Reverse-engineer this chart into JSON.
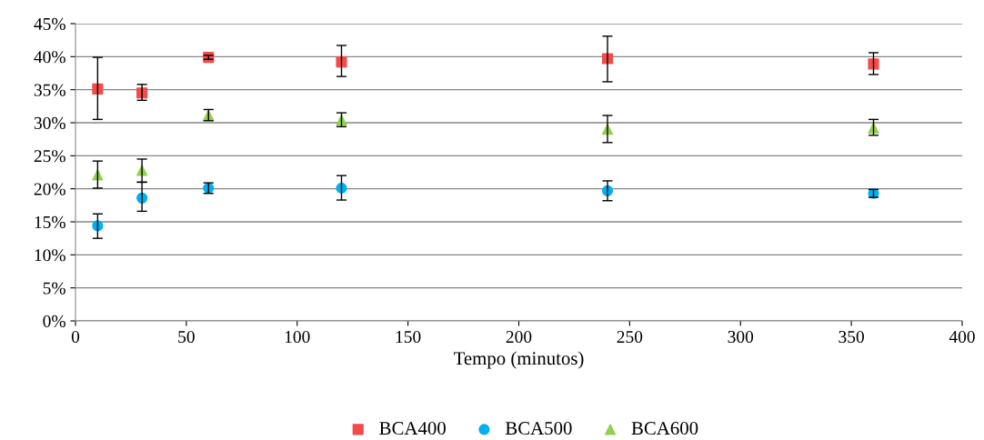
{
  "chart_data": {
    "type": "scatter",
    "xlabel": "Tempo (minutos)",
    "xlim": [
      0,
      400
    ],
    "xticks": [
      0,
      50,
      100,
      150,
      200,
      250,
      300,
      350,
      400
    ],
    "ylim": [
      0,
      45
    ],
    "yticks": [
      {
        "value": 0,
        "label": "0%"
      },
      {
        "value": 5,
        "label": "5%"
      },
      {
        "value": 10,
        "label": "10%"
      },
      {
        "value": 15,
        "label": "15%"
      },
      {
        "value": 20,
        "label": "20%"
      },
      {
        "value": 25,
        "label": "25%"
      },
      {
        "value": 30,
        "label": "30%"
      },
      {
        "value": 35,
        "label": "35%"
      },
      {
        "value": 40,
        "label": "40%"
      },
      {
        "value": 45,
        "label": "45%"
      }
    ],
    "grid": "y",
    "legend": "bottom",
    "x": [
      10,
      30,
      60,
      120,
      240,
      360
    ],
    "series": [
      {
        "name": "BCA400",
        "color": "#f24b4b",
        "marker": "square",
        "values": [
          35.1,
          34.5,
          39.9,
          39.2,
          39.7,
          38.9
        ],
        "errors": [
          [
            30.5,
            39.9
          ],
          [
            33.4,
            35.8
          ],
          [
            39.6,
            40.2
          ],
          [
            37.0,
            41.7
          ],
          [
            36.2,
            43.1
          ],
          [
            37.3,
            40.6
          ]
        ]
      },
      {
        "name": "BCA500",
        "color": "#00b0f0",
        "marker": "circle",
        "values": [
          14.4,
          18.6,
          20.1,
          20.1,
          19.7,
          19.3
        ],
        "errors": [
          [
            12.5,
            16.2
          ],
          [
            16.6,
            21.0
          ],
          [
            19.3,
            20.9
          ],
          [
            18.3,
            22.0
          ],
          [
            18.2,
            21.2
          ],
          [
            18.7,
            19.9
          ]
        ]
      },
      {
        "name": "BCA600",
        "color": "#92d050",
        "marker": "triangle",
        "values": [
          22.1,
          22.8,
          31.1,
          30.4,
          29.0,
          29.2
        ],
        "errors": [
          [
            20.1,
            24.2
          ],
          [
            21.0,
            24.5
          ],
          [
            30.3,
            32.0
          ],
          [
            29.4,
            31.5
          ],
          [
            27.0,
            31.1
          ],
          [
            28.1,
            30.5
          ]
        ]
      }
    ]
  }
}
